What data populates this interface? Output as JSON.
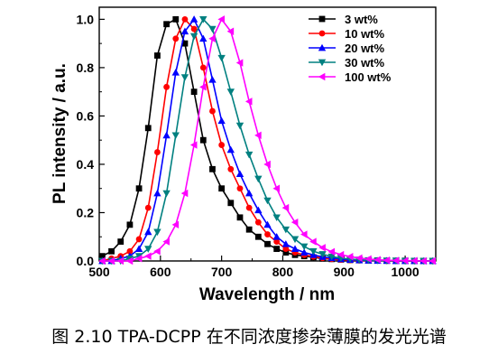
{
  "chart_data": {
    "type": "line",
    "xlabel": "Wavelength / nm",
    "ylabel": "PL intensity / a.u.",
    "xlim": [
      500,
      1050
    ],
    "ylim": [
      0,
      1.05
    ],
    "xticks": [
      500,
      600,
      700,
      800,
      900,
      1000
    ],
    "yticks": [
      0.0,
      0.2,
      0.4,
      0.6,
      0.8,
      1.0
    ],
    "x_tick_labels": [
      "500",
      "600",
      "700",
      "800",
      "900",
      "1000"
    ],
    "y_tick_labels": [
      "0.0",
      "0.2",
      "0.4",
      "0.6",
      "0.8",
      "1.0"
    ],
    "legend_position": "top-right",
    "grid": false,
    "series": [
      {
        "name": "3 wt%",
        "color": "#000000",
        "marker": "square",
        "x": [
          505,
          520,
          535,
          550,
          565,
          580,
          595,
          610,
          625,
          640,
          655,
          670,
          685,
          700,
          715,
          730,
          745,
          760,
          775,
          790,
          805,
          820,
          835,
          850,
          865,
          880,
          895,
          910,
          925,
          940,
          955,
          970,
          985,
          1000,
          1015,
          1030,
          1045
        ],
        "y": [
          0.02,
          0.04,
          0.08,
          0.15,
          0.3,
          0.55,
          0.85,
          0.98,
          1.0,
          0.9,
          0.7,
          0.5,
          0.38,
          0.3,
          0.24,
          0.18,
          0.13,
          0.1,
          0.07,
          0.05,
          0.035,
          0.025,
          0.02,
          0.015,
          0.01,
          0.008,
          0.006,
          0.004,
          0.003,
          0.002,
          0.002,
          0.001,
          0.001,
          0.001,
          0.0,
          0.0,
          0.0
        ]
      },
      {
        "name": "10 wt%",
        "color": "#ff0000",
        "marker": "circle",
        "x": [
          505,
          520,
          535,
          550,
          565,
          580,
          595,
          610,
          625,
          640,
          655,
          670,
          685,
          700,
          715,
          730,
          745,
          760,
          775,
          790,
          805,
          820,
          835,
          850,
          865,
          880,
          895,
          910,
          925,
          940,
          955,
          970,
          985,
          1000,
          1015,
          1030,
          1045
        ],
        "y": [
          0.0,
          0.01,
          0.02,
          0.04,
          0.09,
          0.22,
          0.45,
          0.72,
          0.92,
          1.0,
          0.96,
          0.8,
          0.62,
          0.48,
          0.38,
          0.3,
          0.22,
          0.16,
          0.11,
          0.08,
          0.05,
          0.035,
          0.025,
          0.018,
          0.012,
          0.008,
          0.005,
          0.003,
          0.002,
          0.001,
          0.001,
          0.0,
          0.0,
          0.0,
          0.0,
          0.0,
          0.0
        ]
      },
      {
        "name": "20 wt%",
        "color": "#0000ff",
        "marker": "triangle-up",
        "x": [
          505,
          520,
          535,
          550,
          565,
          580,
          595,
          610,
          625,
          640,
          655,
          670,
          685,
          700,
          715,
          730,
          745,
          760,
          775,
          790,
          805,
          820,
          835,
          850,
          865,
          880,
          895,
          910,
          925,
          940,
          955,
          970,
          985,
          1000,
          1015,
          1030,
          1045
        ],
        "y": [
          0.0,
          0.0,
          0.01,
          0.02,
          0.05,
          0.12,
          0.28,
          0.52,
          0.78,
          0.95,
          1.0,
          0.92,
          0.75,
          0.58,
          0.46,
          0.36,
          0.28,
          0.21,
          0.15,
          0.1,
          0.07,
          0.05,
          0.035,
          0.025,
          0.017,
          0.012,
          0.008,
          0.005,
          0.003,
          0.002,
          0.001,
          0.001,
          0.0,
          0.0,
          0.0,
          0.0,
          0.0
        ]
      },
      {
        "name": "30 wt%",
        "color": "#008080",
        "marker": "triangle-down",
        "x": [
          505,
          520,
          535,
          550,
          565,
          580,
          595,
          610,
          625,
          640,
          655,
          670,
          685,
          700,
          715,
          730,
          745,
          760,
          775,
          790,
          805,
          820,
          835,
          850,
          865,
          880,
          895,
          910,
          925,
          940,
          955,
          970,
          985,
          1000,
          1015,
          1030,
          1045
        ],
        "y": [
          0.0,
          0.0,
          0.0,
          0.01,
          0.02,
          0.05,
          0.12,
          0.28,
          0.52,
          0.76,
          0.93,
          1.0,
          0.96,
          0.84,
          0.7,
          0.56,
          0.44,
          0.34,
          0.25,
          0.18,
          0.13,
          0.09,
          0.06,
          0.04,
          0.028,
          0.018,
          0.012,
          0.008,
          0.005,
          0.003,
          0.002,
          0.001,
          0.001,
          0.0,
          0.0,
          0.0,
          0.0
        ]
      },
      {
        "name": "100 wt%",
        "color": "#ff00ff",
        "marker": "triangle-left",
        "x": [
          505,
          520,
          535,
          550,
          565,
          580,
          595,
          610,
          625,
          640,
          655,
          670,
          685,
          700,
          715,
          730,
          745,
          760,
          775,
          790,
          805,
          820,
          835,
          850,
          865,
          880,
          895,
          910,
          925,
          940,
          955,
          970,
          985,
          1000,
          1015,
          1030,
          1045
        ],
        "y": [
          0.0,
          0.0,
          0.0,
          0.0,
          0.01,
          0.02,
          0.04,
          0.08,
          0.15,
          0.28,
          0.48,
          0.72,
          0.92,
          1.0,
          0.95,
          0.82,
          0.66,
          0.52,
          0.4,
          0.3,
          0.22,
          0.16,
          0.11,
          0.08,
          0.055,
          0.038,
          0.026,
          0.018,
          0.012,
          0.008,
          0.005,
          0.003,
          0.002,
          0.001,
          0.001,
          0.0,
          0.0
        ]
      }
    ]
  },
  "caption": "图 2.10 TPA-DCPP 在不同浓度掺杂薄膜的发光光谱"
}
